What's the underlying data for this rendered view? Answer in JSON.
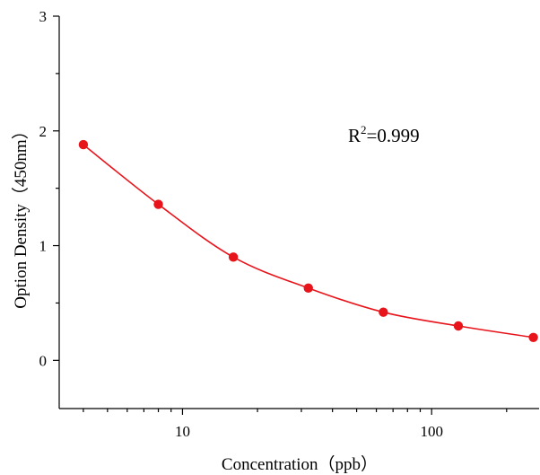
{
  "chart_data": {
    "type": "scatter",
    "xlabel": "Concentration（ppb）",
    "ylabel": "Option Density（450nm）",
    "x_scale": "log",
    "xlim": [
      3.2,
      270
    ],
    "ylim": [
      -0.42,
      3
    ],
    "x_major_ticks": [
      10,
      100
    ],
    "x_tick_labels": [
      "10",
      "100"
    ],
    "y_major_ticks": [
      0,
      1,
      2,
      3
    ],
    "y_tick_labels": [
      "0",
      "1",
      "2",
      "3"
    ],
    "grid": false,
    "annotation": {
      "base": "R",
      "sup": "2",
      "rest": "=0.999"
    },
    "colors": {
      "series": "#e8141b",
      "axis": "#000000"
    },
    "series": [
      {
        "x": [
          4,
          8,
          16,
          32,
          64,
          128,
          256
        ],
        "y": [
          1.88,
          1.36,
          0.9,
          0.63,
          0.42,
          0.3,
          0.2
        ]
      }
    ]
  }
}
